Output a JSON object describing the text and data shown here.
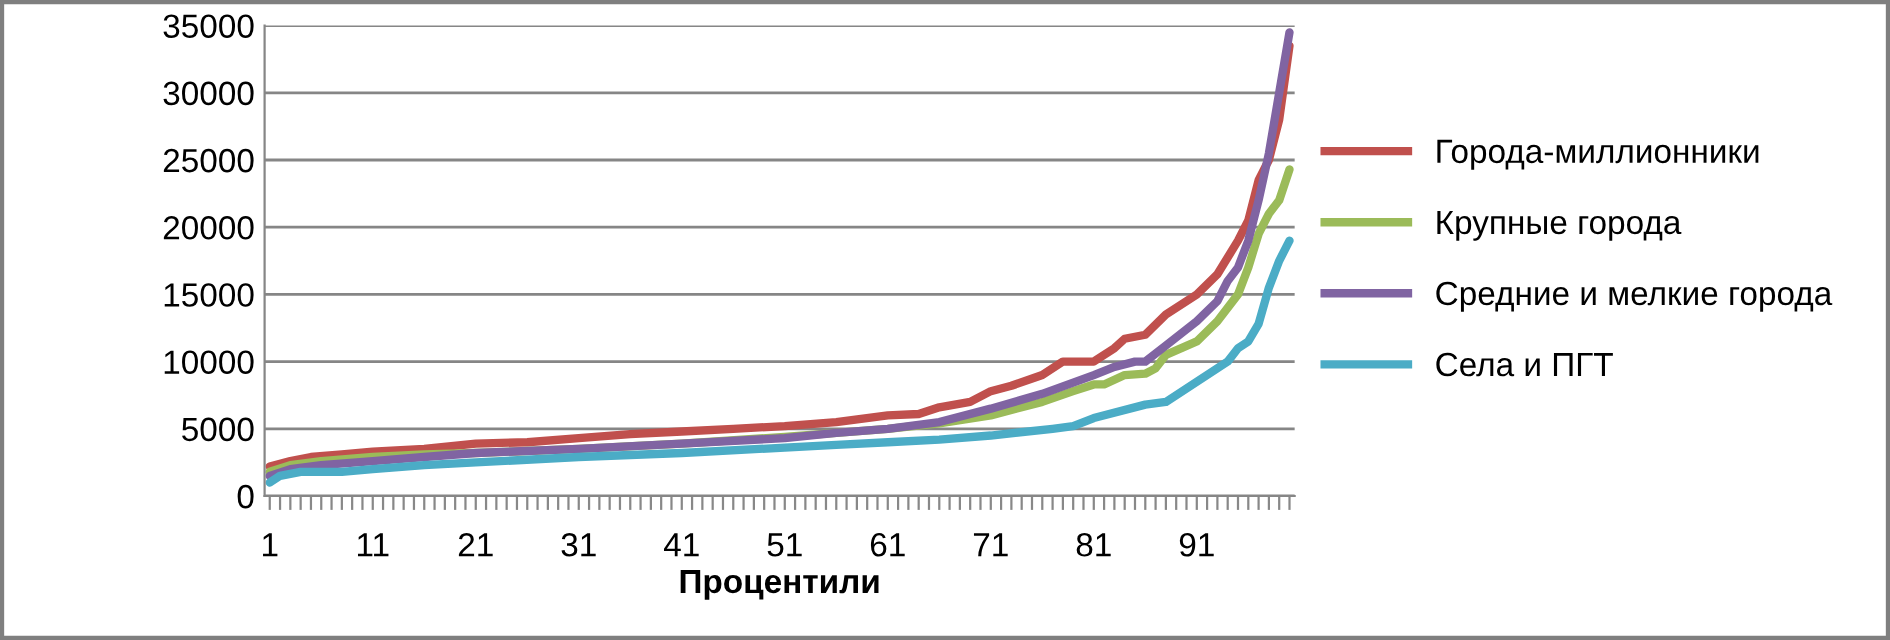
{
  "chart_data": {
    "type": "line",
    "xlabel": "Процентили",
    "xlim": [
      0.5,
      100.5
    ],
    "ylim": [
      0,
      35000
    ],
    "yticks": [
      0,
      5000,
      10000,
      15000,
      20000,
      25000,
      30000,
      35000
    ],
    "xticks": [
      {
        "value": 1,
        "label": "1"
      },
      {
        "value": 2,
        "label": null
      },
      {
        "value": 3,
        "label": null
      },
      {
        "value": 4,
        "label": null
      },
      {
        "value": 5,
        "label": null
      },
      {
        "value": 6,
        "label": null
      },
      {
        "value": 7,
        "label": null
      },
      {
        "value": 8,
        "label": null
      },
      {
        "value": 9,
        "label": null
      },
      {
        "value": 10,
        "label": null
      },
      {
        "value": 11,
        "label": "11"
      },
      {
        "value": 12,
        "label": null
      },
      {
        "value": 13,
        "label": null
      },
      {
        "value": 14,
        "label": null
      },
      {
        "value": 15,
        "label": null
      },
      {
        "value": 16,
        "label": null
      },
      {
        "value": 17,
        "label": null
      },
      {
        "value": 18,
        "label": null
      },
      {
        "value": 19,
        "label": null
      },
      {
        "value": 20,
        "label": null
      },
      {
        "value": 21,
        "label": "21"
      },
      {
        "value": 22,
        "label": null
      },
      {
        "value": 23,
        "label": null
      },
      {
        "value": 24,
        "label": null
      },
      {
        "value": 25,
        "label": null
      },
      {
        "value": 26,
        "label": null
      },
      {
        "value": 27,
        "label": null
      },
      {
        "value": 28,
        "label": null
      },
      {
        "value": 29,
        "label": null
      },
      {
        "value": 30,
        "label": null
      },
      {
        "value": 31,
        "label": "31"
      },
      {
        "value": 32,
        "label": null
      },
      {
        "value": 33,
        "label": null
      },
      {
        "value": 34,
        "label": null
      },
      {
        "value": 35,
        "label": null
      },
      {
        "value": 36,
        "label": null
      },
      {
        "value": 37,
        "label": null
      },
      {
        "value": 38,
        "label": null
      },
      {
        "value": 39,
        "label": null
      },
      {
        "value": 40,
        "label": null
      },
      {
        "value": 41,
        "label": "41"
      },
      {
        "value": 42,
        "label": null
      },
      {
        "value": 43,
        "label": null
      },
      {
        "value": 44,
        "label": null
      },
      {
        "value": 45,
        "label": null
      },
      {
        "value": 46,
        "label": null
      },
      {
        "value": 47,
        "label": null
      },
      {
        "value": 48,
        "label": null
      },
      {
        "value": 49,
        "label": null
      },
      {
        "value": 50,
        "label": null
      },
      {
        "value": 51,
        "label": "51"
      },
      {
        "value": 52,
        "label": null
      },
      {
        "value": 53,
        "label": null
      },
      {
        "value": 54,
        "label": null
      },
      {
        "value": 55,
        "label": null
      },
      {
        "value": 56,
        "label": null
      },
      {
        "value": 57,
        "label": null
      },
      {
        "value": 58,
        "label": null
      },
      {
        "value": 59,
        "label": null
      },
      {
        "value": 60,
        "label": null
      },
      {
        "value": 61,
        "label": "61"
      },
      {
        "value": 62,
        "label": null
      },
      {
        "value": 63,
        "label": null
      },
      {
        "value": 64,
        "label": null
      },
      {
        "value": 65,
        "label": null
      },
      {
        "value": 66,
        "label": null
      },
      {
        "value": 67,
        "label": null
      },
      {
        "value": 68,
        "label": null
      },
      {
        "value": 69,
        "label": null
      },
      {
        "value": 70,
        "label": null
      },
      {
        "value": 71,
        "label": "71"
      },
      {
        "value": 72,
        "label": null
      },
      {
        "value": 73,
        "label": null
      },
      {
        "value": 74,
        "label": null
      },
      {
        "value": 75,
        "label": null
      },
      {
        "value": 76,
        "label": null
      },
      {
        "value": 77,
        "label": null
      },
      {
        "value": 78,
        "label": null
      },
      {
        "value": 79,
        "label": null
      },
      {
        "value": 80,
        "label": null
      },
      {
        "value": 81,
        "label": "81"
      },
      {
        "value": 82,
        "label": null
      },
      {
        "value": 83,
        "label": null
      },
      {
        "value": 84,
        "label": null
      },
      {
        "value": 85,
        "label": null
      },
      {
        "value": 86,
        "label": null
      },
      {
        "value": 87,
        "label": null
      },
      {
        "value": 88,
        "label": null
      },
      {
        "value": 89,
        "label": null
      },
      {
        "value": 90,
        "label": null
      },
      {
        "value": 91,
        "label": "91"
      },
      {
        "value": 92,
        "label": null
      },
      {
        "value": 93,
        "label": null
      },
      {
        "value": 94,
        "label": null
      },
      {
        "value": 95,
        "label": null
      },
      {
        "value": 96,
        "label": null
      },
      {
        "value": 97,
        "label": null
      },
      {
        "value": 98,
        "label": null
      },
      {
        "value": 99,
        "label": null
      },
      {
        "value": 100,
        "label": null
      }
    ],
    "grid": "y",
    "legend": "right",
    "line_style": "solid",
    "marker": "none",
    "series": [
      {
        "name": "Города-миллионники",
        "color": "#c0504d",
        "x": [
          1,
          3,
          5,
          8,
          11,
          16,
          21,
          26,
          31,
          36,
          41,
          46,
          51,
          56,
          61,
          64,
          66,
          69,
          71,
          73,
          76,
          78,
          81,
          83,
          84,
          86,
          88,
          91,
          93,
          95,
          96,
          97,
          98,
          99,
          100
        ],
        "values": [
          2200,
          2600,
          2900,
          3100,
          3300,
          3500,
          3900,
          4000,
          4300,
          4600,
          4800,
          5000,
          5200,
          5500,
          6000,
          6100,
          6600,
          7000,
          7800,
          8200,
          9000,
          10000,
          10000,
          11000,
          11700,
          12000,
          13500,
          15000,
          16500,
          19000,
          20500,
          23500,
          25000,
          28000,
          33500
        ]
      },
      {
        "name": "Крупные города",
        "color": "#9bbb59",
        "x": [
          1,
          3,
          6,
          11,
          16,
          21,
          31,
          41,
          51,
          56,
          61,
          66,
          71,
          76,
          79,
          81,
          82,
          84,
          86,
          87,
          88,
          91,
          93,
          95,
          96,
          97,
          98,
          99,
          100
        ],
        "values": [
          1800,
          2300,
          2600,
          2900,
          3100,
          3200,
          3500,
          3900,
          4400,
          4700,
          5000,
          5400,
          6000,
          7000,
          7800,
          8300,
          8300,
          9000,
          9100,
          9500,
          10500,
          11500,
          13000,
          15000,
          17000,
          19500,
          21000,
          22000,
          24300
        ]
      },
      {
        "name": "Средние и мелкие города",
        "color": "#8064a2",
        "x": [
          1,
          3,
          6,
          11,
          16,
          21,
          31,
          41,
          51,
          56,
          61,
          66,
          71,
          76,
          81,
          83,
          85,
          86,
          88,
          91,
          93,
          94,
          95,
          96,
          97,
          98,
          99,
          100
        ],
        "values": [
          1500,
          2000,
          2300,
          2600,
          2900,
          3200,
          3500,
          3900,
          4300,
          4700,
          5000,
          5500,
          6500,
          7600,
          9000,
          9600,
          10000,
          10000,
          11200,
          13000,
          14500,
          16000,
          17000,
          19000,
          22000,
          25500,
          30000,
          34500
        ]
      },
      {
        "name": "Села и ПГТ",
        "color": "#4bacc6",
        "x": [
          1,
          2,
          4,
          8,
          11,
          16,
          21,
          31,
          41,
          51,
          56,
          61,
          66,
          71,
          77,
          79,
          81,
          86,
          88,
          91,
          93,
          94,
          95,
          96,
          97,
          98,
          99,
          100
        ],
        "values": [
          1000,
          1500,
          1800,
          1800,
          2000,
          2300,
          2500,
          2900,
          3200,
          3600,
          3800,
          4000,
          4200,
          4500,
          5000,
          5200,
          5800,
          6800,
          7000,
          8500,
          9500,
          10000,
          11000,
          11500,
          12800,
          15500,
          17500,
          19000
        ]
      }
    ]
  }
}
